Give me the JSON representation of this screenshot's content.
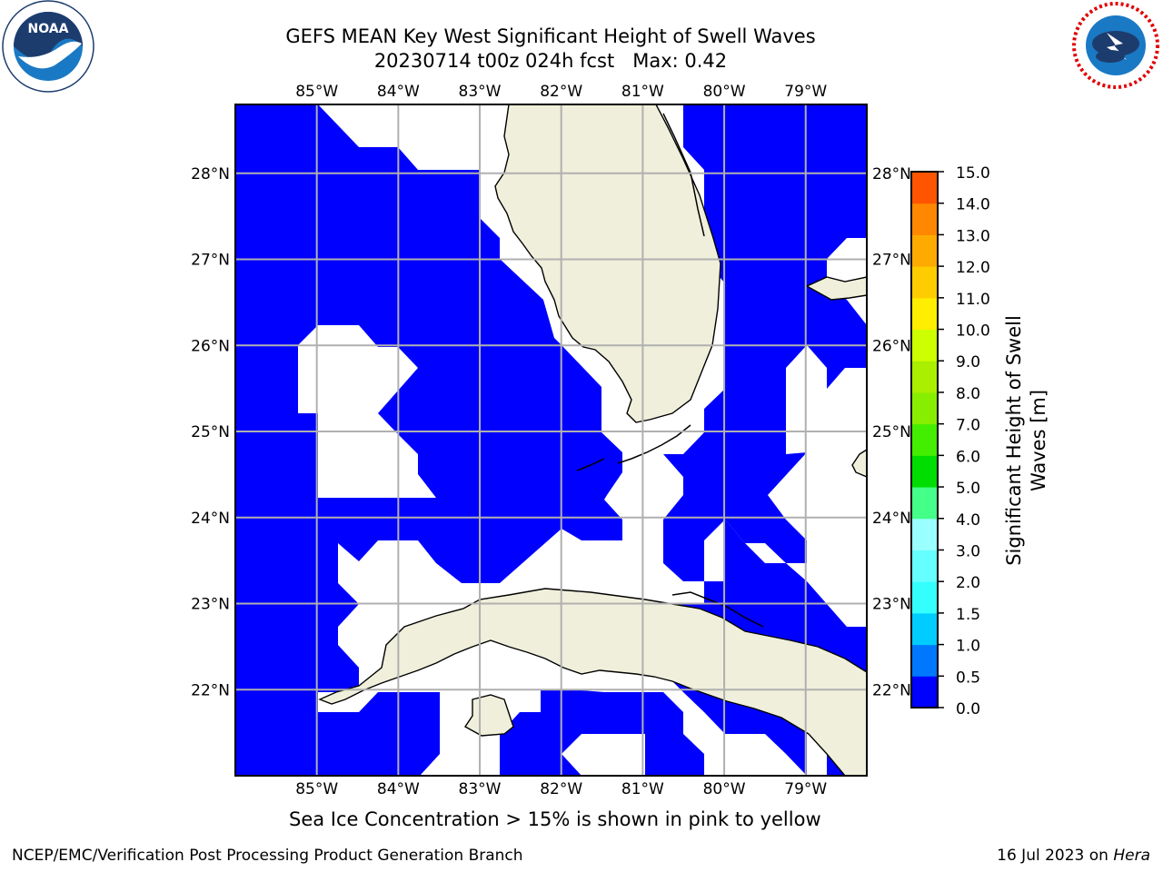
{
  "header": {
    "title_line1": "GEFS MEAN Key West Significant Height of Swell Waves",
    "title_line2": "20230714 t00z 024h fcst   Max: 0.42"
  },
  "logos": {
    "left": {
      "name": "noaa-logo",
      "text": "NOAA",
      "ring_text": "NATIONAL OCEANIC AND ATMOSPHERIC ADMINISTRATION · U.S. DEPARTMENT OF COMMERCE"
    },
    "right": {
      "name": "nws-logo",
      "ring_text": "NATIONAL WEATHER SERVICE"
    }
  },
  "map": {
    "lon_range": [
      -86.0,
      -78.25
    ],
    "lat_range": [
      21.0,
      28.8
    ],
    "lon_ticks": [
      "85°W",
      "84°W",
      "83°W",
      "82°W",
      "81°W",
      "80°W",
      "79°W"
    ],
    "lon_tick_values": [
      -85,
      -84,
      -83,
      -82,
      -81,
      -80,
      -79
    ],
    "lat_ticks": [
      "28°N",
      "27°N",
      "26°N",
      "25°N",
      "24°N",
      "23°N",
      "22°N"
    ],
    "lat_tick_values": [
      28,
      27,
      26,
      25,
      24,
      23,
      22
    ],
    "grid": true,
    "colors": {
      "swell_0_0.5": "#0000ff",
      "land": "#efefdb",
      "grid": "#b0b0b0",
      "no_data": "#ffffff"
    }
  },
  "colorbar": {
    "label_line1": "Significant Height of Swell",
    "label_line2": "Waves [m]",
    "levels": [
      "0.0",
      "0.5",
      "1.0",
      "1.5",
      "2.0",
      "3.0",
      "4.0",
      "5.0",
      "6.0",
      "7.0",
      "8.0",
      "9.0",
      "10.0",
      "11.0",
      "12.0",
      "13.0",
      "14.0",
      "15.0"
    ],
    "colors": [
      "#0000ff",
      "#0077ff",
      "#00ccff",
      "#33ffff",
      "#66ffff",
      "#99ffff",
      "#44ff88",
      "#00dd00",
      "#44ee00",
      "#88ee00",
      "#aaee00",
      "#ccff00",
      "#ffee00",
      "#ffcc00",
      "#ffaa00",
      "#ff8800",
      "#ff5500",
      "#ff2200",
      "#ff0000"
    ]
  },
  "note": "Sea Ice Concentration > 15% is shown in pink to yellow",
  "footer": {
    "left": "NCEP/EMC/Verification Post Processing Product Generation Branch",
    "date": "16 Jul 2023 on ",
    "host": "Hera"
  }
}
